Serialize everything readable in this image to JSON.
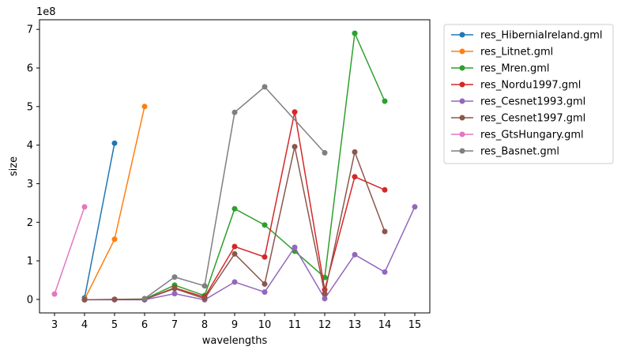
{
  "chart_data": {
    "type": "line",
    "xlabel": "wavelengths",
    "ylabel": "size",
    "y_multiplier_label": "1e8",
    "xlim": [
      2.5,
      15.5
    ],
    "ylim": [
      -0.35,
      7.25
    ],
    "x_ticks": [
      3,
      4,
      5,
      6,
      7,
      8,
      9,
      10,
      11,
      12,
      13,
      14,
      15
    ],
    "y_ticks": [
      0,
      1,
      2,
      3,
      4,
      5,
      6,
      7
    ],
    "grid": false,
    "legend_position": "outside-right-top",
    "series": [
      {
        "name": "res_HiberniaIreland.gml",
        "color": "#1f77b4",
        "points": [
          [
            4,
            0.04
          ],
          [
            5,
            4.05
          ]
        ]
      },
      {
        "name": "res_Litnet.gml",
        "color": "#ff7f0e",
        "points": [
          [
            4,
            0.0
          ],
          [
            5,
            1.56
          ],
          [
            6,
            5.0
          ]
        ]
      },
      {
        "name": "res_Mren.gml",
        "color": "#2ca02c",
        "points": [
          [
            5,
            0.0
          ],
          [
            6,
            0.01
          ],
          [
            7,
            0.37
          ],
          [
            8,
            0.1
          ],
          [
            9,
            2.35
          ],
          [
            10,
            1.93
          ],
          [
            11,
            1.25
          ],
          [
            12,
            0.57
          ],
          [
            13,
            6.9
          ],
          [
            14,
            5.14
          ]
        ]
      },
      {
        "name": "res_Nordu1997.gml",
        "color": "#d62728",
        "points": [
          [
            5,
            0.0
          ],
          [
            6,
            0.0
          ],
          [
            7,
            0.3
          ],
          [
            8,
            0.06
          ],
          [
            9,
            1.37
          ],
          [
            10,
            1.1
          ],
          [
            11,
            4.86
          ],
          [
            12,
            0.25
          ],
          [
            13,
            3.18
          ],
          [
            14,
            2.84
          ]
        ]
      },
      {
        "name": "res_Cesnet1993.gml",
        "color": "#9467bd",
        "points": [
          [
            4,
            -0.01
          ],
          [
            5,
            -0.01
          ],
          [
            6,
            -0.01
          ],
          [
            7,
            0.15
          ],
          [
            8,
            -0.01
          ],
          [
            9,
            0.45
          ],
          [
            10,
            0.19
          ],
          [
            11,
            1.35
          ],
          [
            12,
            0.02
          ],
          [
            13,
            1.16
          ],
          [
            14,
            0.71
          ],
          [
            15,
            2.4
          ]
        ]
      },
      {
        "name": "res_Cesnet1997.gml",
        "color": "#8c564b",
        "points": [
          [
            4,
            -0.01
          ],
          [
            5,
            0.0
          ],
          [
            6,
            0.0
          ],
          [
            7,
            0.28
          ],
          [
            8,
            0.02
          ],
          [
            9,
            1.18
          ],
          [
            10,
            0.4
          ],
          [
            11,
            3.96
          ],
          [
            12,
            0.15
          ],
          [
            13,
            3.82
          ],
          [
            14,
            1.76
          ]
        ]
      },
      {
        "name": "res_GtsHungary.gml",
        "color": "#e377c2",
        "points": [
          [
            3,
            0.14
          ],
          [
            4,
            2.4
          ]
        ]
      },
      {
        "name": "res_Basnet.gml",
        "color": "#7f7f7f",
        "points": [
          [
            6,
            0.02
          ],
          [
            7,
            0.58
          ],
          [
            8,
            0.35
          ],
          [
            9,
            4.85
          ],
          [
            10,
            5.51
          ],
          [
            12,
            3.8
          ]
        ]
      }
    ]
  }
}
